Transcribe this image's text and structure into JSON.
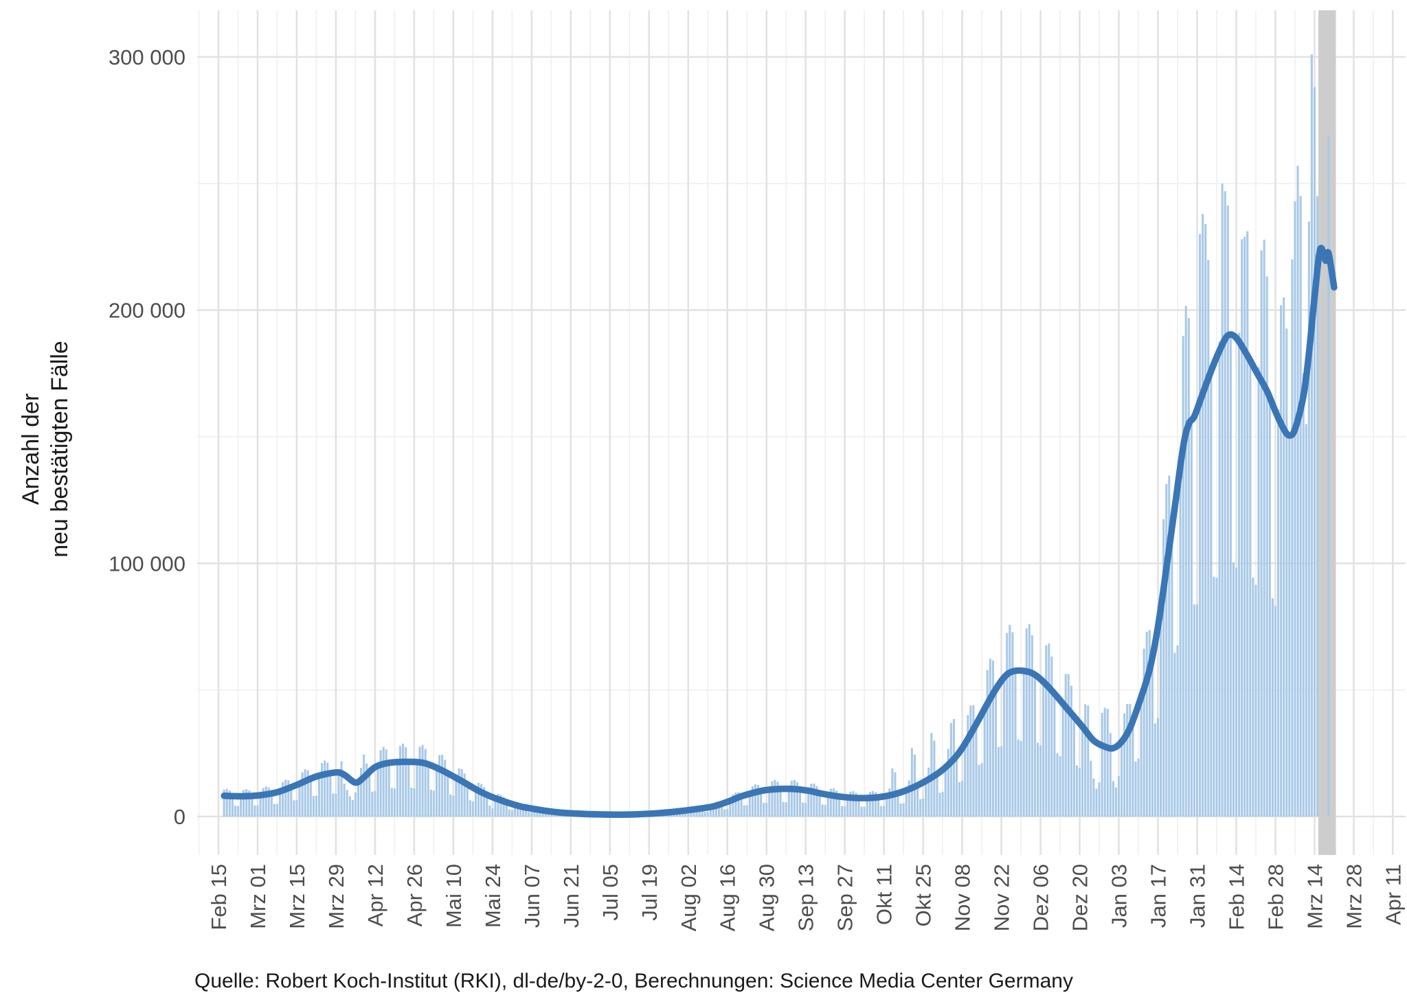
{
  "y_axis": {
    "title_lines": [
      "Anzahl der",
      "neu bestätigten Fälle"
    ],
    "tick_labels": [
      "0",
      "100 000",
      "200 000",
      "300 000"
    ],
    "tick_values": [
      0,
      100000,
      200000,
      300000
    ]
  },
  "caption": {
    "text": "Quelle: Robert Koch-Institut (RKI), dl-de/by-2-0, Berechnungen: Science Media Center Germany"
  },
  "colors": {
    "bar_fill": "#a9c9e7",
    "line_stroke": "#3a76b5",
    "recent_band_fill": "#cdcdcd",
    "grid_major": "#e2e2e2",
    "grid_minor": "#f0f0f0",
    "tick_text": "#4d4d4d",
    "background": "#ffffff"
  },
  "chart_data": {
    "type": "bar+line",
    "title": "",
    "xlabel": "",
    "ylabel": "Anzahl der neu bestätigten Fälle",
    "ylim": [
      0,
      318000
    ],
    "y_major_step": 100000,
    "y_minor_step": 50000,
    "x_tick_interval_days": 14,
    "x_minor_interval_days": 7,
    "days_total": 420,
    "bars_day_range": [
      2,
      399
    ],
    "x_tick_labels": [
      "Feb 15",
      "Mrz 01",
      "Mrz 15",
      "Mrz 29",
      "Apr 12",
      "Apr 26",
      "Mai 10",
      "Mai 24",
      "Jun 07",
      "Jun 21",
      "Jul 05",
      "Jul 19",
      "Aug 02",
      "Aug 16",
      "Aug 30",
      "Sep 13",
      "Sep 27",
      "Okt 11",
      "Okt 25",
      "Nov 08",
      "Nov 22",
      "Dez 06",
      "Dez 20",
      "Jan 03",
      "Jan 17",
      "Jan 31",
      "Feb 14",
      "Feb 28",
      "Mrz 14",
      "Mrz 28",
      "Apr 11"
    ],
    "series": [
      {
        "name": "daily-reported-cases",
        "type": "bar"
      },
      {
        "name": "7-day-mean",
        "type": "line"
      }
    ],
    "avg_line_anchors": [
      [
        2,
        8200
      ],
      [
        8,
        8000
      ],
      [
        14,
        8300
      ],
      [
        21,
        9600
      ],
      [
        28,
        12500
      ],
      [
        35,
        15800
      ],
      [
        42,
        17400
      ],
      [
        45,
        16500
      ],
      [
        49,
        13400
      ],
      [
        52,
        15500
      ],
      [
        56,
        19500
      ],
      [
        61,
        21200
      ],
      [
        68,
        21600
      ],
      [
        74,
        21000
      ],
      [
        80,
        18200
      ],
      [
        87,
        14000
      ],
      [
        94,
        9600
      ],
      [
        101,
        6400
      ],
      [
        108,
        4000
      ],
      [
        115,
        2600
      ],
      [
        122,
        1600
      ],
      [
        129,
        1100
      ],
      [
        136,
        850
      ],
      [
        143,
        750
      ],
      [
        150,
        900
      ],
      [
        157,
        1300
      ],
      [
        164,
        2000
      ],
      [
        170,
        2800
      ],
      [
        177,
        4000
      ],
      [
        183,
        6200
      ],
      [
        187,
        8000
      ],
      [
        194,
        10100
      ],
      [
        199,
        10800
      ],
      [
        205,
        10900
      ],
      [
        211,
        10200
      ],
      [
        215,
        9200
      ],
      [
        222,
        7900
      ],
      [
        229,
        7300
      ],
      [
        236,
        7600
      ],
      [
        243,
        9200
      ],
      [
        250,
        12300
      ],
      [
        257,
        16800
      ],
      [
        262,
        21500
      ],
      [
        266,
        27000
      ],
      [
        271,
        36500
      ],
      [
        277,
        48500
      ],
      [
        281,
        55000
      ],
      [
        284,
        57300
      ],
      [
        288,
        57500
      ],
      [
        292,
        56000
      ],
      [
        297,
        51000
      ],
      [
        304,
        42000
      ],
      [
        309,
        35500
      ],
      [
        313,
        30000
      ],
      [
        317,
        27600
      ],
      [
        320,
        27000
      ],
      [
        323,
        29500
      ],
      [
        326,
        35000
      ],
      [
        329,
        44000
      ],
      [
        333,
        58000
      ],
      [
        336,
        75000
      ],
      [
        339,
        98000
      ],
      [
        342,
        122000
      ],
      [
        345,
        146000
      ],
      [
        347,
        155000
      ],
      [
        349,
        158000
      ],
      [
        352,
        167000
      ],
      [
        355,
        176000
      ],
      [
        358,
        184000
      ],
      [
        361,
        190000
      ],
      [
        364,
        189000
      ],
      [
        368,
        182000
      ],
      [
        371,
        176000
      ],
      [
        375,
        168000
      ],
      [
        378,
        160000
      ],
      [
        381,
        153000
      ],
      [
        383,
        150500
      ],
      [
        385,
        153000
      ],
      [
        388,
        166000
      ],
      [
        390,
        183000
      ],
      [
        392,
        205000
      ],
      [
        394,
        224000
      ],
      [
        396,
        219500
      ],
      [
        397,
        222500
      ],
      [
        399,
        209000
      ]
    ],
    "weekday_factors": [
      0.52,
      1.02,
      1.3,
      1.34,
      1.27,
      1.0,
      0.53
    ],
    "bars_model": "bar[d] = interpolate(avg_line_anchors, d) * weekday_factors[d % 7], replaced by bar_overrides where present",
    "bar_overrides": {
      "45": 13000,
      "46": 10500,
      "47": 8000,
      "48": 6500,
      "49": 9500,
      "52": 24500,
      "98": 3200,
      "241": 19000,
      "242": 17500,
      "248": 27000,
      "249": 24500,
      "255": 33000,
      "256": 30000,
      "262": 37000,
      "263": 38500,
      "312": 22000,
      "313": 15000,
      "314": 11000,
      "315": 13500,
      "316": 41000,
      "317": 43000,
      "318": 42500,
      "319": 33000,
      "320": 14000,
      "321": 11500,
      "322": 16000,
      "351": 230000,
      "352": 238000,
      "353": 234000,
      "359": 250000,
      "360": 247000,
      "366": 228000,
      "367": 229000,
      "384": 220000,
      "385": 243000,
      "386": 257000,
      "387": 245000,
      "388": 175000,
      "389": 155000,
      "390": 235000,
      "391": 301000,
      "392": 288000,
      "393": 245000,
      "397": 269000
    },
    "recent_band": {
      "day_start": 394,
      "day_end": 399,
      "visible_bars": {
        "397": 269000
      }
    }
  }
}
